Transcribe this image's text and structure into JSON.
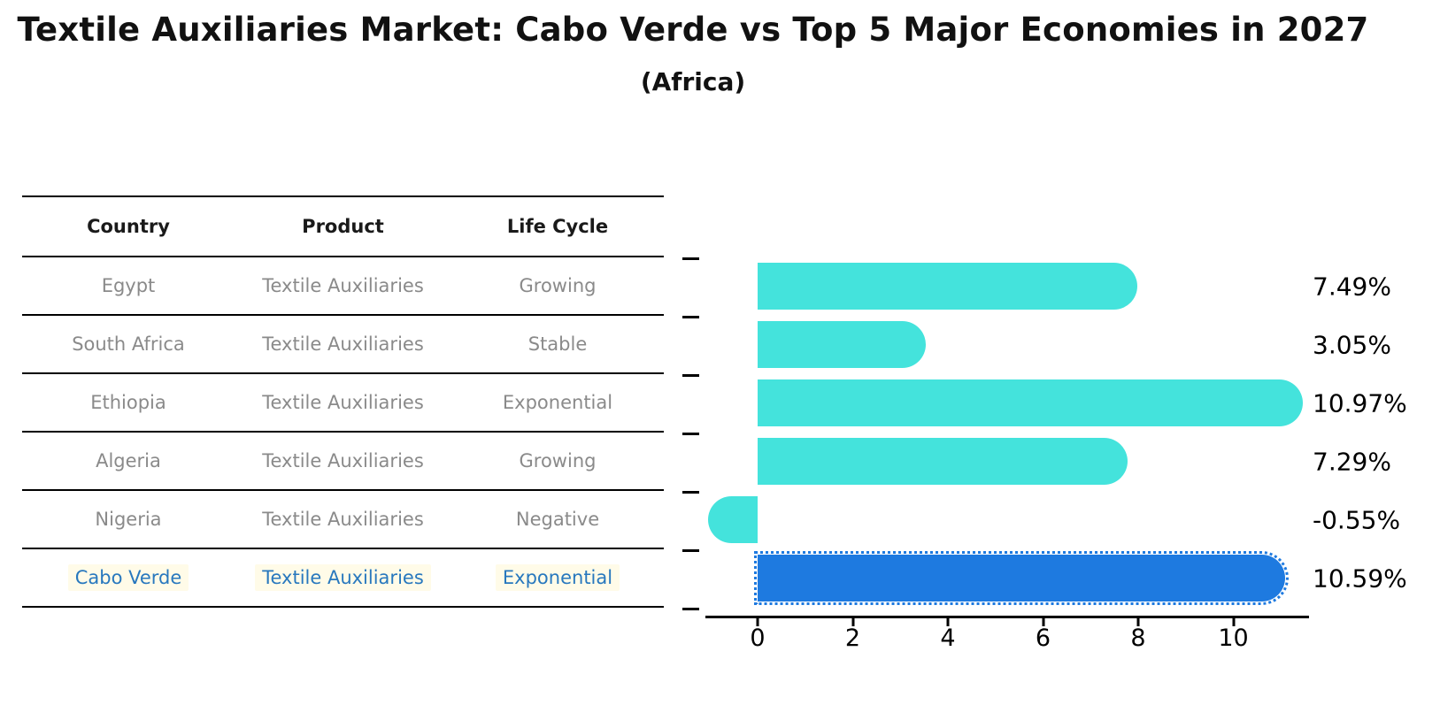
{
  "title": "Textile Auxiliaries Market: Cabo Verde vs Top 5 Major Economies in 2027",
  "subtitle": "(Africa)",
  "table": {
    "headers": [
      "Country",
      "Product",
      "Life Cycle"
    ],
    "rows": [
      {
        "country": "Egypt",
        "product": "Textile Auxiliaries",
        "life_cycle": "Growing"
      },
      {
        "country": "South Africa",
        "product": "Textile Auxiliaries",
        "life_cycle": "Stable"
      },
      {
        "country": "Ethiopia",
        "product": "Textile Auxiliaries",
        "life_cycle": "Exponential"
      },
      {
        "country": "Algeria",
        "product": "Textile Auxiliaries",
        "life_cycle": "Growing"
      },
      {
        "country": "Nigeria",
        "product": "Textile Auxiliaries",
        "life_cycle": "Negative"
      },
      {
        "country": "Cabo Verde",
        "product": "Textile Auxiliaries",
        "life_cycle": "Exponential"
      }
    ],
    "highlight_row": 5
  },
  "chart_data": {
    "type": "bar",
    "orientation": "horizontal",
    "title": "Textile Auxiliaries Market: Cabo Verde vs Top 5 Major Economies in 2027 (Africa)",
    "categories": [
      "Egypt",
      "South Africa",
      "Ethiopia",
      "Algeria",
      "Nigeria",
      "Cabo Verde"
    ],
    "values": [
      7.49,
      3.05,
      10.97,
      7.29,
      -0.55,
      10.59
    ],
    "labels": [
      "7.49%",
      "3.05%",
      "10.97%",
      "7.29%",
      "-0.55%",
      "10.59%"
    ],
    "unit": "%",
    "xticks": [
      0,
      2,
      4,
      6,
      8,
      10
    ],
    "xlim": [
      -1.1,
      11.6
    ],
    "grid": false,
    "legend": false,
    "bar_color": "#44e3dc",
    "highlight_color": "#1e7ae0",
    "highlight_index": 5,
    "highlight_text_color": "#2878be",
    "highlight_bg_color": "#fffbe8",
    "text_gray": "#8a8a8a"
  }
}
